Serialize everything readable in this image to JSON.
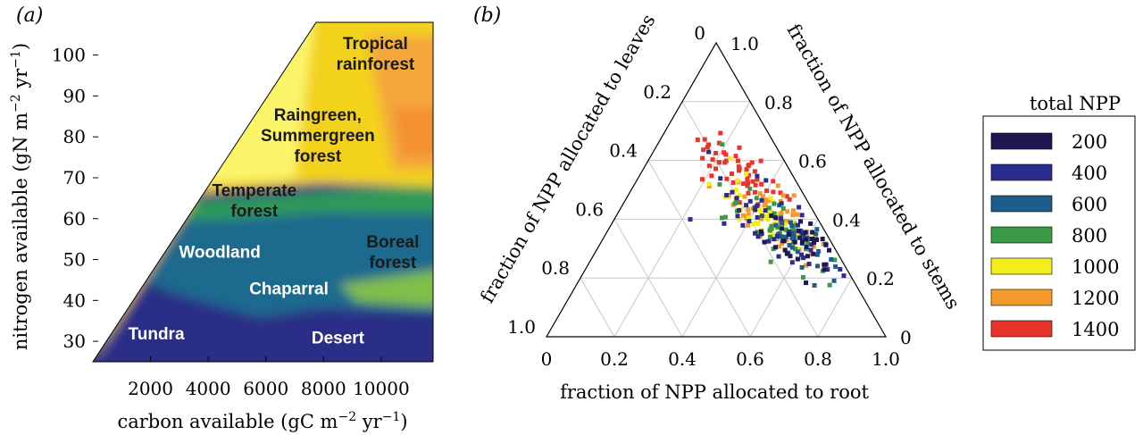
{
  "chart_data": [
    {
      "panel": "(a)",
      "type": "heatmap",
      "xlabel_main": "carbon available (gC m",
      "xlabel_exp": "−2",
      "xlabel_mid": " yr",
      "xlabel_exp2": "−1",
      "xlabel_end": ")",
      "ylabel_main": "nitrogen available (gN m",
      "ylabel_exp": "−2",
      "ylabel_mid": " yr",
      "ylabel_exp2": "−1",
      "ylabel_end": ")",
      "xlim": [
        0,
        11800
      ],
      "ylim": [
        25,
        108
      ],
      "xticks": [
        2000,
        4000,
        6000,
        8000,
        10000
      ],
      "yticks": [
        30,
        40,
        50,
        60,
        70,
        80,
        90,
        100
      ],
      "regions": [
        {
          "name": "Tropical rainforest",
          "lines": [
            "Tropical",
            "rainforest"
          ],
          "x": 9800,
          "y": 101.5,
          "color": "#1a1a1a"
        },
        {
          "name": "Raingreen, Summergreen forest",
          "lines": [
            "Raingreen,",
            "Summergreen",
            "forest"
          ],
          "x": 7800,
          "y": 84,
          "color": "#1a1a1a"
        },
        {
          "name": "Temperate forest",
          "lines": [
            "Temperate",
            "forest"
          ],
          "x": 5600,
          "y": 65.5,
          "color": "#1a1a1a"
        },
        {
          "name": "Boreal forest",
          "lines": [
            "Boreal",
            "forest"
          ],
          "x": 10400,
          "y": 53,
          "color": "#1a1a1a"
        },
        {
          "name": "Woodland",
          "lines": [
            "Woodland"
          ],
          "x": 4400,
          "y": 50.5,
          "color": "#ffffff"
        },
        {
          "name": "Chaparral",
          "lines": [
            "Chaparral"
          ],
          "x": 6800,
          "y": 41.5,
          "color": "#ffffff"
        },
        {
          "name": "Tundra",
          "lines": [
            "Tundra"
          ],
          "x": 2200,
          "y": 30.5,
          "color": "#ffffff"
        },
        {
          "name": "Desert",
          "lines": [
            "Desert"
          ],
          "x": 8500,
          "y": 29.5,
          "color": "#ffffff"
        }
      ]
    },
    {
      "panel": "(b)",
      "type": "scatter",
      "subtype": "ternary",
      "axis_root_label": "fraction of NPP allocated to root",
      "axis_leaves_label": "fraction of NPP allocated to leaves",
      "axis_stems_label": "fraction of NPP allocated to stems",
      "root_ticks": [
        "0",
        "0.2",
        "0.4",
        "0.6",
        "0.8",
        "1.0"
      ],
      "leaves_ticks": [
        "0",
        "0.2",
        "0.4",
        "0.6",
        "0.8",
        "1.0"
      ],
      "stems_ticks": [
        "0",
        "0.2",
        "0.4",
        "0.6",
        "0.8",
        "1.0"
      ],
      "legend": {
        "title": "total NPP",
        "entries": [
          {
            "label": "200",
            "color": "#1f1652"
          },
          {
            "label": "400",
            "color": "#2a2c8e"
          },
          {
            "label": "600",
            "color": "#1e5c8c"
          },
          {
            "label": "800",
            "color": "#3a9a45"
          },
          {
            "label": "1000",
            "color": "#f2ee1a"
          },
          {
            "label": "1200",
            "color": "#f39a2a"
          },
          {
            "label": "1400",
            "color": "#e8342a"
          }
        ]
      },
      "clusters": [
        {
          "npp": 1400,
          "color": "#e8342a",
          "center": {
            "root": 0.3,
            "stems": 0.55
          },
          "spread": 0.07,
          "count": 55
        },
        {
          "npp": 1200,
          "color": "#f39a2a",
          "center": {
            "root": 0.46,
            "stems": 0.4
          },
          "spread": 0.08,
          "count": 55
        },
        {
          "npp": 1000,
          "color": "#f2ee1a",
          "center": {
            "root": 0.42,
            "stems": 0.43
          },
          "spread": 0.08,
          "count": 40
        },
        {
          "npp": 800,
          "color": "#3a9a45",
          "center": {
            "root": 0.52,
            "stems": 0.36
          },
          "spread": 0.09,
          "count": 45
        },
        {
          "npp": 600,
          "color": "#1e5c8c",
          "center": {
            "root": 0.56,
            "stems": 0.34
          },
          "spread": 0.06,
          "count": 40
        },
        {
          "npp": 400,
          "color": "#2a2c8e",
          "center": {
            "root": 0.5,
            "stems": 0.37
          },
          "spread": 0.1,
          "count": 45
        },
        {
          "npp": 200,
          "color": "#1f1652",
          "center": {
            "root": 0.58,
            "stems": 0.33
          },
          "spread": 0.06,
          "count": 35
        }
      ]
    }
  ]
}
